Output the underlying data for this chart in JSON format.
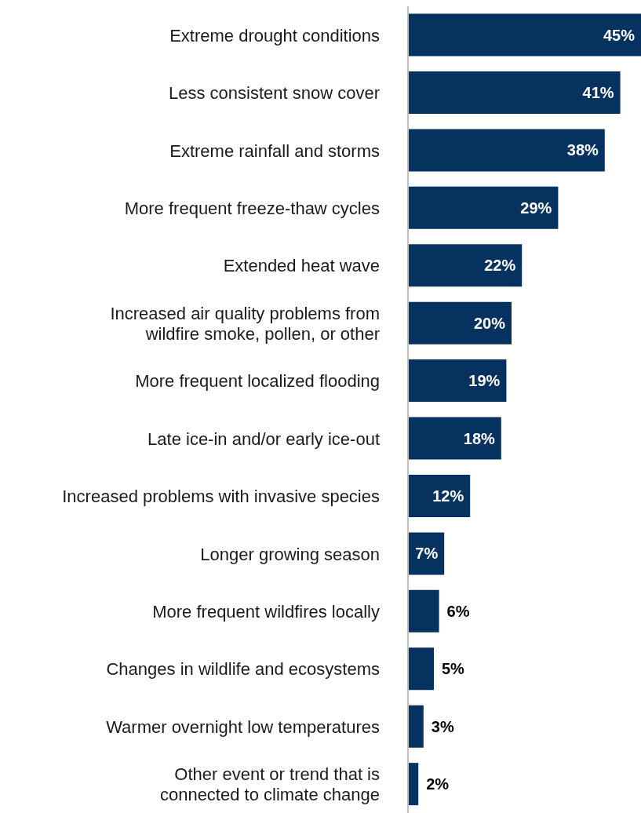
{
  "chart_data": {
    "type": "bar",
    "orientation": "horizontal",
    "categories": [
      "Extreme drought conditions",
      "Less consistent snow cover",
      "Extreme rainfall and storms",
      "More frequent freeze-thaw cycles",
      "Extended heat wave",
      "Increased air quality problems from wildfire smoke, pollen, or other",
      "More frequent localized flooding",
      "Late ice-in and/or early ice-out",
      "Increased problems with invasive species",
      "Longer growing season",
      "More frequent wildfires locally",
      "Changes in wildlife and ecosystems",
      "Warmer overnight low temperatures",
      "Other event or trend that is connected to climate change"
    ],
    "values": [
      45,
      41,
      38,
      29,
      22,
      20,
      19,
      18,
      12,
      7,
      6,
      5,
      3,
      2
    ],
    "value_labels": [
      "45%",
      "41%",
      "38%",
      "29%",
      "22%",
      "20%",
      "19%",
      "18%",
      "12%",
      "7%",
      "6%",
      "5%",
      "3%",
      "2%"
    ],
    "color": "#06325f",
    "grid": false,
    "legend": false
  }
}
